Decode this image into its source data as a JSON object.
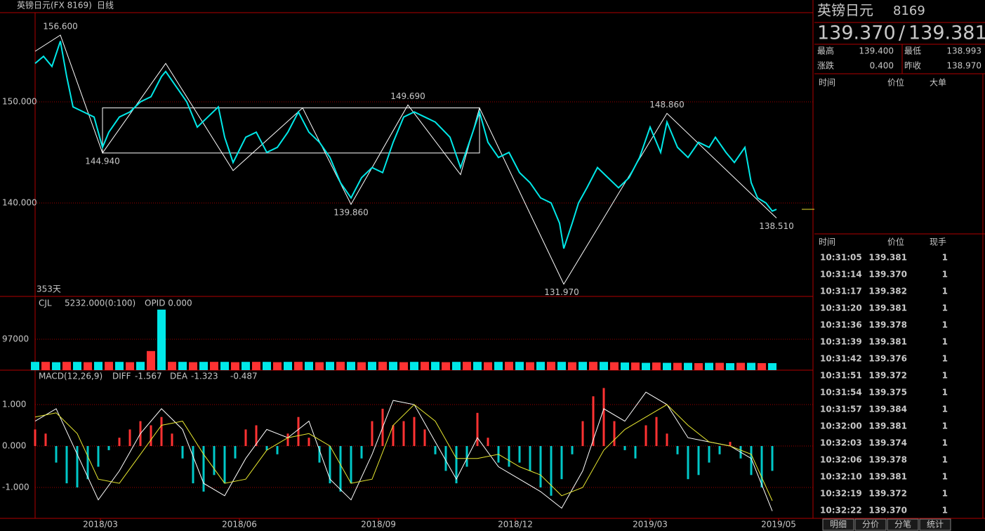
{
  "toolbar": {
    "symbol": "英镑日元(FX 8169)",
    "period": "日线"
  },
  "chart_data": [
    {
      "type": "line",
      "days_label": "353天",
      "color": "#00e8e8",
      "grid": true,
      "grid_color": "#a00000",
      "x": [
        0,
        4,
        8,
        12,
        15,
        18,
        23,
        28,
        32,
        35,
        40,
        45,
        50,
        55,
        60,
        62,
        67,
        72,
        77,
        82,
        87,
        90,
        94,
        100,
        105,
        110,
        115,
        120,
        125,
        130,
        135,
        140,
        145,
        150,
        155,
        160,
        165,
        170,
        175,
        180,
        185,
        190,
        197,
        202,
        207,
        211,
        215,
        220,
        225,
        230,
        235,
        240,
        245,
        249,
        251,
        255,
        258,
        262,
        267,
        272,
        277,
        282,
        287,
        292,
        297,
        300,
        305,
        310,
        315,
        320,
        323,
        328,
        332,
        337,
        340,
        343,
        347,
        350,
        352
      ],
      "values": [
        153.8,
        154.5,
        153.5,
        156.0,
        152.5,
        149.5,
        149.0,
        148.5,
        145.5,
        147.0,
        148.5,
        149.0,
        150.0,
        150.5,
        152.5,
        153.0,
        151.5,
        150.0,
        147.5,
        148.5,
        149.5,
        146.5,
        144.0,
        146.5,
        147.0,
        145.0,
        145.5,
        147.0,
        149.0,
        147.0,
        146.0,
        144.5,
        142.0,
        140.5,
        142.5,
        143.5,
        143.0,
        146.0,
        148.5,
        149.0,
        148.5,
        148.0,
        146.5,
        143.5,
        146.5,
        149.0,
        146.0,
        144.5,
        145.0,
        143.0,
        142.0,
        140.5,
        140.0,
        138.0,
        135.5,
        138.0,
        140.0,
        141.5,
        143.5,
        142.5,
        141.5,
        142.5,
        144.5,
        147.5,
        145.0,
        148.0,
        145.5,
        144.5,
        146.0,
        145.5,
        146.5,
        145.0,
        144.0,
        145.5,
        142.0,
        140.5,
        140.0,
        139.2,
        139.37
      ],
      "zigzag": {
        "color": "#ffffff",
        "x": [
          0,
          12,
          32,
          62,
          94,
          127,
          150,
          177,
          202,
          211,
          251,
          300,
          352
        ],
        "values": [
          155.0,
          156.6,
          144.94,
          153.8,
          143.2,
          149.4,
          139.86,
          149.69,
          142.8,
          149.4,
          131.97,
          148.86,
          138.51
        ]
      },
      "box": {
        "x": [
          32,
          211
        ],
        "y": [
          144.94,
          149.4
        ],
        "color": "#ffffff"
      },
      "pivot_labels": {
        "x": [
          12,
          32,
          150,
          177,
          250,
          300,
          352
        ],
        "values": [
          156.6,
          144.94,
          139.86,
          149.69,
          131.97,
          148.86,
          138.51
        ],
        "value_labels": [
          "156.600",
          "144.940",
          "139.860",
          "149.690",
          "131.970",
          "148.860",
          "138.510"
        ],
        "colors": [
          "#ff4040",
          "#40e0e0",
          "#40e0e0",
          "#ff4040",
          "#40e0e0",
          "#ff4040",
          "#40e0e0"
        ]
      },
      "xlim": [
        0,
        369.33
      ],
      "ylim": [
        130.76,
        158.82
      ],
      "yticks": [
        {
          "value": 150,
          "label": "150.000"
        },
        {
          "value": 140,
          "label": "140.000"
        }
      ],
      "xticks": [
        {
          "value": 31,
          "label": "2018/03"
        },
        {
          "value": 97,
          "label": "2018/06"
        },
        {
          "value": 163,
          "label": "2018/09"
        },
        {
          "value": 228,
          "label": "2018/12"
        },
        {
          "value": 292,
          "label": "2019/03"
        },
        {
          "value": 353,
          "label": "2019/05"
        }
      ]
    },
    {
      "type": "bar",
      "indicator": "CJL",
      "params": "5232.000(0:100)",
      "opid": "OPID 0.000",
      "colors": [
        "#00e8e8",
        "#ff3232"
      ],
      "x": [
        0,
        5,
        10,
        15,
        20,
        25,
        30,
        35,
        40,
        45,
        50,
        55,
        60,
        65,
        70,
        75,
        80,
        85,
        90,
        95,
        100,
        105,
        110,
        115,
        120,
        125,
        130,
        135,
        140,
        145,
        150,
        155,
        160,
        165,
        170,
        175,
        180,
        185,
        190,
        195,
        200,
        205,
        210,
        215,
        220,
        225,
        230,
        235,
        240,
        245,
        250,
        255,
        260,
        265,
        270,
        275,
        280,
        285,
        290,
        295,
        300,
        305,
        310,
        315,
        320,
        325,
        330,
        335,
        340,
        345,
        350
      ],
      "values": [
        26000,
        26000,
        25000,
        26000,
        26000,
        25000,
        26000,
        26000,
        26000,
        25000,
        26000,
        60000,
        190000,
        26000,
        26000,
        25000,
        26000,
        26000,
        26000,
        25000,
        26000,
        26000,
        26000,
        25000,
        26000,
        26000,
        26000,
        25000,
        26000,
        26000,
        26000,
        25000,
        26000,
        26000,
        26000,
        25000,
        26000,
        26000,
        26000,
        25000,
        26000,
        26000,
        26000,
        25000,
        26000,
        26000,
        26000,
        25000,
        26000,
        26000,
        26000,
        25000,
        26000,
        26000,
        26000,
        25000,
        24000,
        24000,
        23000,
        24000,
        23000,
        23000,
        23000,
        22000,
        23000,
        23000,
        22000,
        23000,
        23000,
        22000,
        22000
      ],
      "xlim": [
        0,
        369.33
      ],
      "ylim": [
        0,
        227000
      ],
      "yticks": [
        97000
      ]
    },
    {
      "type": "macd",
      "name": "MACD(12,26,9)",
      "up_color": "#ff3232",
      "down_color": "#00c8c8",
      "readout": [
        {
          "name": "DIFF",
          "value": -1.567
        },
        {
          "name": "DEA",
          "value": -1.323
        },
        {
          "value": -0.487
        }
      ],
      "x": [
        0,
        5,
        10,
        15,
        20,
        25,
        30,
        35,
        40,
        45,
        50,
        55,
        60,
        65,
        70,
        75,
        80,
        85,
        90,
        95,
        100,
        105,
        110,
        115,
        120,
        125,
        130,
        135,
        140,
        145,
        150,
        155,
        160,
        165,
        170,
        175,
        180,
        185,
        190,
        195,
        200,
        205,
        210,
        215,
        220,
        225,
        230,
        235,
        240,
        245,
        250,
        255,
        260,
        265,
        270,
        275,
        280,
        285,
        290,
        295,
        300,
        305,
        310,
        315,
        320,
        325,
        330,
        335,
        340,
        345,
        350
      ],
      "values": [
        0.4,
        0.3,
        -0.4,
        -0.9,
        -1.0,
        -0.8,
        -0.5,
        -0.1,
        0.2,
        0.4,
        0.6,
        0.5,
        0.7,
        0.3,
        -0.3,
        -0.9,
        -1.1,
        -0.7,
        -0.9,
        -0.3,
        0.4,
        0.5,
        -0.1,
        -0.2,
        0.3,
        0.7,
        0.2,
        -0.4,
        -0.9,
        -1.1,
        -0.9,
        -0.3,
        0.6,
        0.9,
        0.5,
        0.6,
        0.7,
        0.4,
        -0.2,
        -0.6,
        -0.9,
        -0.5,
        0.8,
        0.2,
        -0.4,
        -0.5,
        -0.4,
        -0.6,
        -1.0,
        -1.2,
        -0.8,
        -0.2,
        0.6,
        1.2,
        1.4,
        0.6,
        -0.1,
        -0.3,
        0.5,
        0.7,
        0.3,
        -0.2,
        -0.8,
        -0.7,
        -0.4,
        -0.2,
        0.1,
        -0.3,
        -0.7,
        -1.0,
        -0.6
      ],
      "series": [
        {
          "color": "#ffffff",
          "x": [
            0,
            10,
            20,
            30,
            40,
            50,
            60,
            70,
            80,
            90,
            100,
            110,
            120,
            130,
            140,
            150,
            160,
            170,
            180,
            190,
            200,
            210,
            220,
            230,
            240,
            250,
            260,
            270,
            280,
            290,
            300,
            310,
            320,
            330,
            340,
            350
          ],
          "values": [
            0.6,
            0.9,
            -0.2,
            -1.3,
            -0.6,
            0.3,
            0.9,
            0.4,
            -0.9,
            -1.2,
            -0.3,
            0.4,
            0.2,
            0.6,
            -0.8,
            -1.3,
            -0.2,
            1.1,
            1.0,
            0.1,
            -0.8,
            0.2,
            -0.5,
            -0.8,
            -1.1,
            -1.5,
            -0.6,
            0.9,
            0.6,
            1.3,
            1.0,
            0.2,
            0.1,
            0.0,
            -0.3,
            -1.57
          ]
        },
        {
          "color": "#e8e830",
          "x": [
            0,
            10,
            20,
            30,
            40,
            50,
            60,
            70,
            80,
            90,
            100,
            110,
            120,
            130,
            140,
            150,
            160,
            170,
            180,
            190,
            200,
            210,
            220,
            230,
            240,
            250,
            260,
            270,
            280,
            290,
            300,
            310,
            320,
            330,
            340,
            350
          ],
          "values": [
            0.7,
            0.8,
            0.3,
            -0.8,
            -0.9,
            -0.2,
            0.5,
            0.6,
            -0.2,
            -0.9,
            -0.8,
            -0.1,
            0.2,
            0.3,
            0.0,
            -0.9,
            -0.8,
            0.5,
            1.0,
            0.6,
            -0.3,
            -0.3,
            -0.2,
            -0.5,
            -0.7,
            -1.2,
            -1.0,
            -0.1,
            0.4,
            0.7,
            1.0,
            0.5,
            0.1,
            0.0,
            -0.2,
            -1.32
          ]
        }
      ],
      "xlim": [
        0,
        369.33
      ],
      "ylim": [
        -1.746,
        1.814
      ],
      "yticks": [
        {
          "value": 1,
          "label": "1.000"
        },
        {
          "value": 0,
          "label": "0.000"
        },
        {
          "value": -1,
          "label": "-1.000"
        }
      ]
    }
  ],
  "quote": {
    "name": "英镑日元",
    "code": "8169",
    "bid": "139.370",
    "separator": "/",
    "ask": "139.381",
    "high_label": "最高",
    "high": "139.400",
    "low_label": "最低",
    "low": "138.993",
    "change_label": "涨跌",
    "change": "0.400",
    "prev_label": "昨收",
    "prev": "138.970"
  },
  "big_orders": {
    "headers": [
      "时间",
      "价位",
      "大单"
    ]
  },
  "trades": {
    "headers": [
      "时间",
      "价位",
      "现手"
    ],
    "rows": [
      [
        "10:31:05",
        "139.381",
        "1"
      ],
      [
        "10:31:14",
        "139.370",
        "1"
      ],
      [
        "10:31:17",
        "139.382",
        "1"
      ],
      [
        "10:31:20",
        "139.381",
        "1"
      ],
      [
        "10:31:36",
        "139.378",
        "1"
      ],
      [
        "10:31:39",
        "139.381",
        "1"
      ],
      [
        "10:31:42",
        "139.376",
        "1"
      ],
      [
        "10:31:51",
        "139.372",
        "1"
      ],
      [
        "10:31:54",
        "139.375",
        "1"
      ],
      [
        "10:31:57",
        "139.384",
        "1"
      ],
      [
        "10:32:00",
        "139.381",
        "1"
      ],
      [
        "10:32:03",
        "139.374",
        "1"
      ],
      [
        "10:32:06",
        "139.378",
        "1"
      ],
      [
        "10:32:10",
        "139.381",
        "1"
      ],
      [
        "10:32:19",
        "139.372",
        "1"
      ],
      [
        "10:32:22",
        "139.370",
        "1"
      ]
    ]
  },
  "tabs": [
    "明细",
    "分价",
    "分笔",
    "统计"
  ]
}
